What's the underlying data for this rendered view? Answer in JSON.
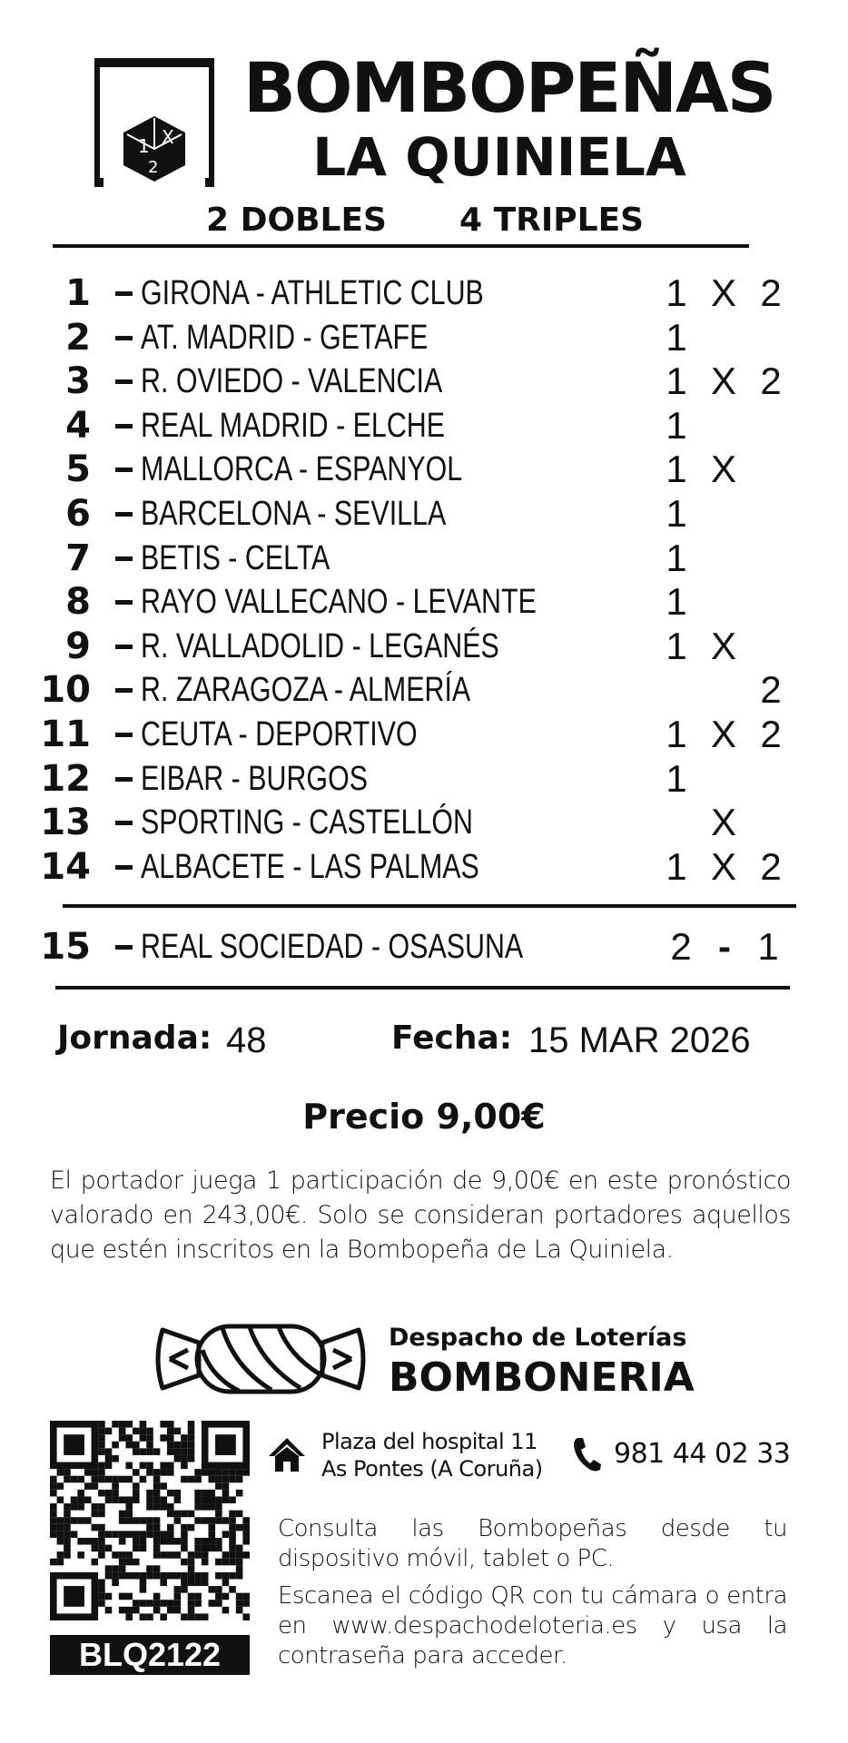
{
  "header": {
    "logo_letters": [
      "1",
      "X",
      "2"
    ],
    "title": "BOMBOPEÑAS",
    "subtitle": "LA QUINIELA",
    "dobles": "2 DOBLES",
    "triples": "4 TRIPLES"
  },
  "matches": [
    {
      "num": "1",
      "teams": "GIRONA - ATHLETIC CLUB",
      "p1": "1",
      "px": "X",
      "p2": "2"
    },
    {
      "num": "2",
      "teams": "AT. MADRID - GETAFE",
      "p1": "1",
      "px": "",
      "p2": ""
    },
    {
      "num": "3",
      "teams": "R. OVIEDO - VALENCIA",
      "p1": "1",
      "px": "X",
      "p2": "2"
    },
    {
      "num": "4",
      "teams": "REAL MADRID - ELCHE",
      "p1": "1",
      "px": "",
      "p2": ""
    },
    {
      "num": "5",
      "teams": "MALLORCA - ESPANYOL",
      "p1": "1",
      "px": "X",
      "p2": ""
    },
    {
      "num": "6",
      "teams": "BARCELONA - SEVILLA",
      "p1": "1",
      "px": "",
      "p2": ""
    },
    {
      "num": "7",
      "teams": "BETIS - CELTA",
      "p1": "1",
      "px": "",
      "p2": ""
    },
    {
      "num": "8",
      "teams": "RAYO VALLECANO - LEVANTE",
      "p1": "1",
      "px": "",
      "p2": ""
    },
    {
      "num": "9",
      "teams": "R. VALLADOLID - LEGANÉS",
      "p1": "1",
      "px": "X",
      "p2": ""
    },
    {
      "num": "10",
      "teams": "R. ZARAGOZA - ALMERÍA",
      "p1": "",
      "px": "",
      "p2": "2"
    },
    {
      "num": "11",
      "teams": "CEUTA - DEPORTIVO",
      "p1": "1",
      "px": "X",
      "p2": "2"
    },
    {
      "num": "12",
      "teams": "EIBAR - BURGOS",
      "p1": "1",
      "px": "",
      "p2": ""
    },
    {
      "num": "13",
      "teams": "SPORTING - CASTELLÓN",
      "p1": "",
      "px": "X",
      "p2": ""
    },
    {
      "num": "14",
      "teams": "ALBACETE - LAS PALMAS",
      "p1": "1",
      "px": "X",
      "p2": "2"
    }
  ],
  "pleno": {
    "num": "15",
    "teams": "REAL SOCIEDAD - OSASUNA",
    "home": "2",
    "sep": "-",
    "away": "1"
  },
  "meta": {
    "jornada_label": "Jornada:",
    "jornada": "48",
    "fecha_label": "Fecha:",
    "fecha": "15 MAR 2026",
    "precio": "Precio 9,00€"
  },
  "disclaimer": "El portador juega 1 participación de 9,00€ en este pronóstico valorado en 243,00€. Solo se consideran portadores aquellos que estén inscritos en la Bombopeña de La Quiniela.",
  "shop": {
    "line1": "Despacho de Loterías",
    "name": "BOMBONERIA",
    "address1": "Plaza del hospital 11",
    "address2": "As Pontes (A Coruña)",
    "phone": "981 44 02 33",
    "code": "BLQ2122",
    "info1": "Consulta las Bombopeñas desde tu dispositivo móvil, tablet o PC.",
    "info2": "Escanea el código QR con tu cámara o entra en www.despachodeloteria.es y usa la contraseña para acceder."
  },
  "icons": {
    "home": "house-icon",
    "phone": "phone-icon",
    "candy": "candy-icon",
    "qr": "qr-code"
  }
}
